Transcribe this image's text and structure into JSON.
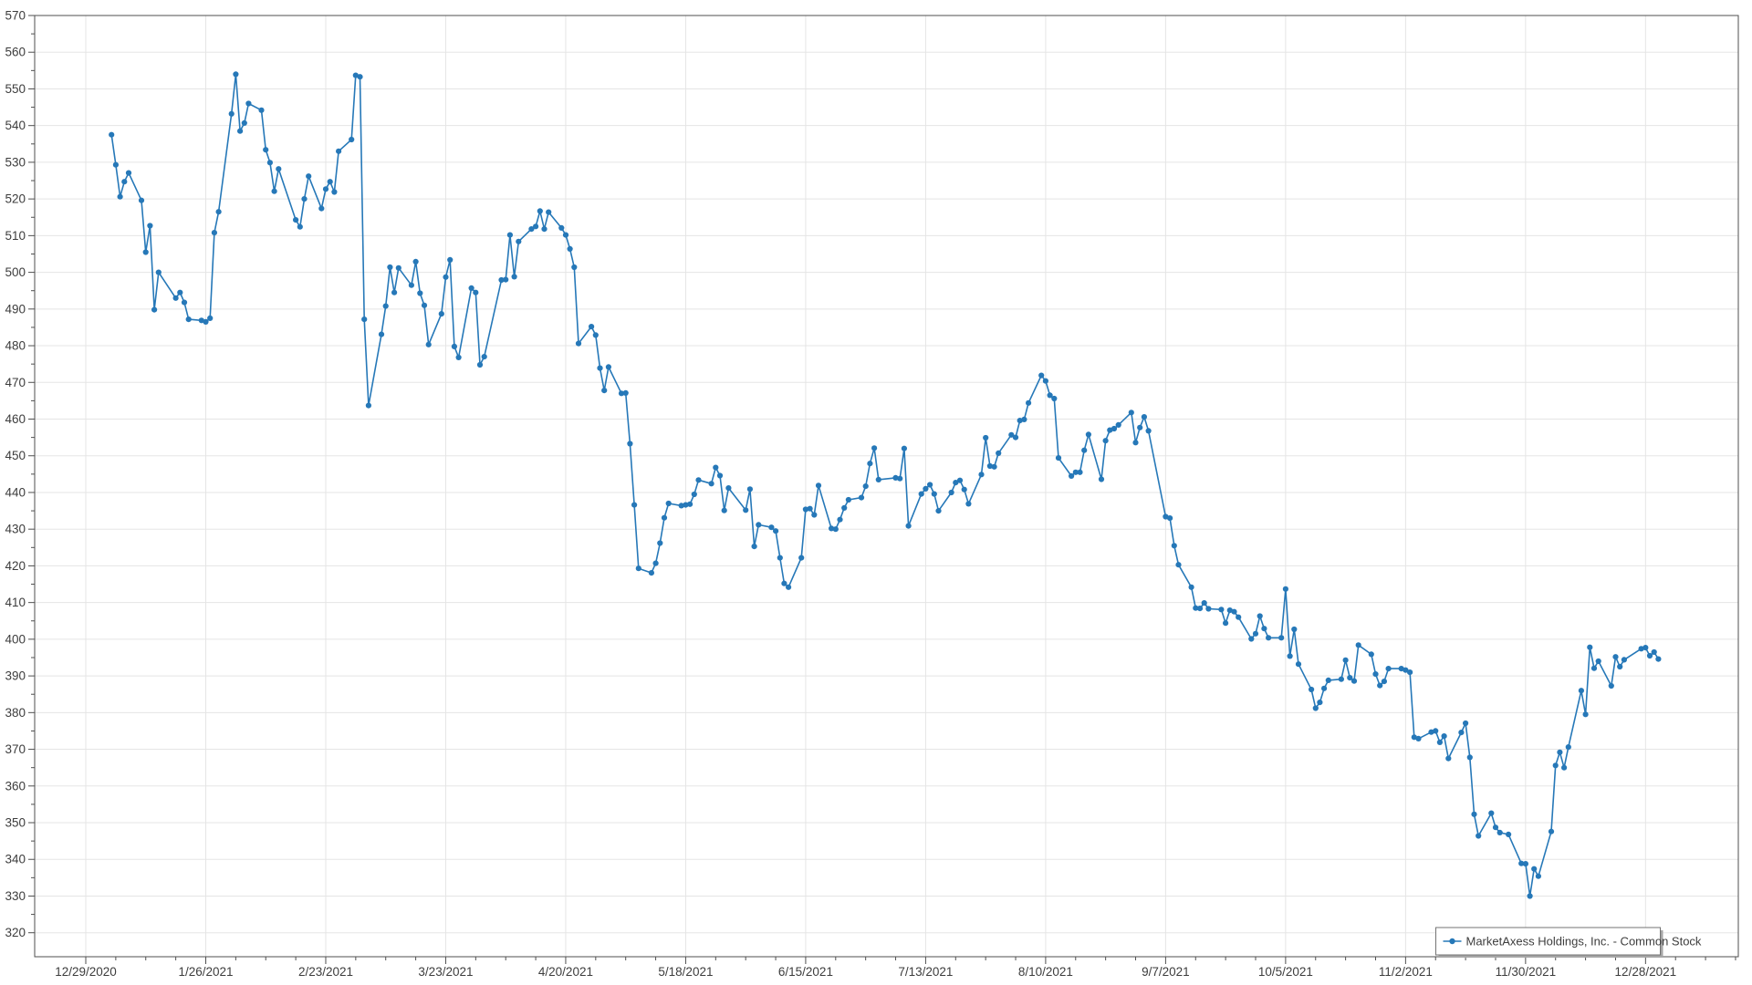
{
  "chart_data": {
    "type": "line",
    "title": "",
    "xlabel": "",
    "ylabel": "",
    "ylim": [
      320,
      570
    ],
    "y_tick_step": 10,
    "y_minor_tick_step": 5,
    "grid": true,
    "legend_position": "bottom-right",
    "colors": {
      "series": "#2678b8",
      "grid": "#e5e5e5",
      "axis": "#4f4f4f",
      "tick_label": "#3d3d3d",
      "legend_border": "#737373",
      "legend_shadow": "#a6a6a6",
      "background": "#ffffff"
    },
    "x_tick_labels": [
      "12/29/2020",
      "1/26/2021",
      "2/23/2021",
      "3/23/2021",
      "4/20/2021",
      "5/18/2021",
      "6/15/2021",
      "7/13/2021",
      "8/10/2021",
      "9/7/2021",
      "10/5/2021",
      "11/2/2021",
      "11/30/2021",
      "12/28/2021"
    ],
    "x_tick_epoch": "2020-12-29",
    "x_tick_interval_days": 28,
    "x_minor_tick_interval_days": 7,
    "series": [
      {
        "name": "MarketAxess Holdings, Inc. - Common Stock",
        "marker": "circle",
        "dates": [
          "2021-01-04",
          "2021-01-05",
          "2021-01-06",
          "2021-01-07",
          "2021-01-08",
          "2021-01-11",
          "2021-01-12",
          "2021-01-13",
          "2021-01-14",
          "2021-01-15",
          "2021-01-19",
          "2021-01-20",
          "2021-01-21",
          "2021-01-22",
          "2021-01-25",
          "2021-01-26",
          "2021-01-27",
          "2021-01-28",
          "2021-01-29",
          "2021-02-01",
          "2021-02-02",
          "2021-02-03",
          "2021-02-04",
          "2021-02-05",
          "2021-02-08",
          "2021-02-09",
          "2021-02-10",
          "2021-02-11",
          "2021-02-12",
          "2021-02-16",
          "2021-02-17",
          "2021-02-18",
          "2021-02-19",
          "2021-02-22",
          "2021-02-23",
          "2021-02-24",
          "2021-02-25",
          "2021-02-26",
          "2021-03-01",
          "2021-03-02",
          "2021-03-03",
          "2021-03-04",
          "2021-03-05",
          "2021-03-08",
          "2021-03-09",
          "2021-03-10",
          "2021-03-11",
          "2021-03-12",
          "2021-03-15",
          "2021-03-16",
          "2021-03-17",
          "2021-03-18",
          "2021-03-19",
          "2021-03-22",
          "2021-03-23",
          "2021-03-24",
          "2021-03-25",
          "2021-03-26",
          "2021-03-29",
          "2021-03-30",
          "2021-03-31",
          "2021-04-01",
          "2021-04-05",
          "2021-04-06",
          "2021-04-07",
          "2021-04-08",
          "2021-04-09",
          "2021-04-12",
          "2021-04-13",
          "2021-04-14",
          "2021-04-15",
          "2021-04-16",
          "2021-04-19",
          "2021-04-20",
          "2021-04-21",
          "2021-04-22",
          "2021-04-23",
          "2021-04-26",
          "2021-04-27",
          "2021-04-28",
          "2021-04-29",
          "2021-04-30",
          "2021-05-03",
          "2021-05-04",
          "2021-05-05",
          "2021-05-06",
          "2021-05-07",
          "2021-05-10",
          "2021-05-11",
          "2021-05-12",
          "2021-05-13",
          "2021-05-14",
          "2021-05-17",
          "2021-05-18",
          "2021-05-19",
          "2021-05-20",
          "2021-05-21",
          "2021-05-24",
          "2021-05-25",
          "2021-05-26",
          "2021-05-27",
          "2021-05-28",
          "2021-06-01",
          "2021-06-02",
          "2021-06-03",
          "2021-06-04",
          "2021-06-07",
          "2021-06-08",
          "2021-06-09",
          "2021-06-10",
          "2021-06-11",
          "2021-06-14",
          "2021-06-15",
          "2021-06-16",
          "2021-06-17",
          "2021-06-18",
          "2021-06-21",
          "2021-06-22",
          "2021-06-23",
          "2021-06-24",
          "2021-06-25",
          "2021-06-28",
          "2021-06-29",
          "2021-06-30",
          "2021-07-01",
          "2021-07-02",
          "2021-07-06",
          "2021-07-07",
          "2021-07-08",
          "2021-07-09",
          "2021-07-12",
          "2021-07-13",
          "2021-07-14",
          "2021-07-15",
          "2021-07-16",
          "2021-07-19",
          "2021-07-20",
          "2021-07-21",
          "2021-07-22",
          "2021-07-23",
          "2021-07-26",
          "2021-07-27",
          "2021-07-28",
          "2021-07-29",
          "2021-07-30",
          "2021-08-02",
          "2021-08-03",
          "2021-08-04",
          "2021-08-05",
          "2021-08-06",
          "2021-08-09",
          "2021-08-10",
          "2021-08-11",
          "2021-08-12",
          "2021-08-13",
          "2021-08-16",
          "2021-08-17",
          "2021-08-18",
          "2021-08-19",
          "2021-08-20",
          "2021-08-23",
          "2021-08-24",
          "2021-08-25",
          "2021-08-26",
          "2021-08-27",
          "2021-08-30",
          "2021-08-31",
          "2021-09-01",
          "2021-09-02",
          "2021-09-03",
          "2021-09-07",
          "2021-09-08",
          "2021-09-09",
          "2021-09-10",
          "2021-09-13",
          "2021-09-14",
          "2021-09-15",
          "2021-09-16",
          "2021-09-17",
          "2021-09-20",
          "2021-09-21",
          "2021-09-22",
          "2021-09-23",
          "2021-09-24",
          "2021-09-27",
          "2021-09-28",
          "2021-09-29",
          "2021-09-30",
          "2021-10-01",
          "2021-10-04",
          "2021-10-05",
          "2021-10-06",
          "2021-10-07",
          "2021-10-08",
          "2021-10-11",
          "2021-10-12",
          "2021-10-13",
          "2021-10-14",
          "2021-10-15",
          "2021-10-18",
          "2021-10-19",
          "2021-10-20",
          "2021-10-21",
          "2021-10-22",
          "2021-10-25",
          "2021-10-26",
          "2021-10-27",
          "2021-10-28",
          "2021-10-29",
          "2021-11-01",
          "2021-11-02",
          "2021-11-03",
          "2021-11-04",
          "2021-11-05",
          "2021-11-08",
          "2021-11-09",
          "2021-11-10",
          "2021-11-11",
          "2021-11-12",
          "2021-11-15",
          "2021-11-16",
          "2021-11-17",
          "2021-11-18",
          "2021-11-19",
          "2021-11-22",
          "2021-11-23",
          "2021-11-24",
          "2021-11-26",
          "2021-11-29",
          "2021-11-30",
          "2021-12-01",
          "2021-12-02",
          "2021-12-03",
          "2021-12-06",
          "2021-12-07",
          "2021-12-08",
          "2021-12-09",
          "2021-12-10",
          "2021-12-13",
          "2021-12-14",
          "2021-12-15",
          "2021-12-16",
          "2021-12-17",
          "2021-12-20",
          "2021-12-21",
          "2021-12-22",
          "2021-12-23",
          "2021-12-27",
          "2021-12-28",
          "2021-12-29",
          "2021-12-30",
          "2021-12-31"
        ],
        "values": [
          537.5,
          529.3,
          520.6,
          524.7,
          527.1,
          519.6,
          505.5,
          512.7,
          489.8,
          500.0,
          493.0,
          494.5,
          491.8,
          487.2,
          486.9,
          486.5,
          487.5,
          510.8,
          516.5,
          543.2,
          554.0,
          538.5,
          540.7,
          546.0,
          544.2,
          533.4,
          529.9,
          522.1,
          528.2,
          514.3,
          512.4,
          520.0,
          526.2,
          517.4,
          522.7,
          524.7,
          521.9,
          533.0,
          536.2,
          553.7,
          553.3,
          487.2,
          463.7,
          483.1,
          490.8,
          501.4,
          494.5,
          501.2,
          496.5,
          502.9,
          494.3,
          491.0,
          480.3,
          488.7,
          498.7,
          503.4,
          479.8,
          476.8,
          495.7,
          494.5,
          474.8,
          477.0,
          497.9,
          498.0,
          510.2,
          498.8,
          508.4,
          511.8,
          512.5,
          516.7,
          511.8,
          516.4,
          512.1,
          510.2,
          506.4,
          501.4,
          480.6,
          485.2,
          482.9,
          473.9,
          467.8,
          474.2,
          467.0,
          467.1,
          453.3,
          436.6,
          419.3,
          418.1,
          420.7,
          426.2,
          433.1,
          437.0,
          436.4,
          436.6,
          436.8,
          439.5,
          443.4,
          442.4,
          446.8,
          444.6,
          435.1,
          441.2,
          435.2,
          440.9,
          425.3,
          431.2,
          430.5,
          429.5,
          422.2,
          415.2,
          414.2,
          422.2,
          435.4,
          435.6,
          433.9,
          441.9,
          430.2,
          430.0,
          432.6,
          435.8,
          438.0,
          438.6,
          441.7,
          447.9,
          452.1,
          443.5,
          444.0,
          443.8,
          452.0,
          430.9,
          439.6,
          441.0,
          442.1,
          439.6,
          435.0,
          440.0,
          442.7,
          443.3,
          440.8,
          436.9,
          444.9,
          454.9,
          447.2,
          447.0,
          450.7,
          455.7,
          455.0,
          459.6,
          459.9,
          464.4,
          471.9,
          470.4,
          466.5,
          465.6,
          449.4,
          444.5,
          445.5,
          445.5,
          451.5,
          455.8,
          443.6,
          454.1,
          457.0,
          457.4,
          458.4,
          461.8,
          453.6,
          457.7,
          460.6,
          456.8,
          433.4,
          433.0,
          425.5,
          420.3,
          414.2,
          408.5,
          408.4,
          409.9,
          408.3,
          408.1,
          404.4,
          407.9,
          407.5,
          406.0,
          400.1,
          401.5,
          406.3,
          402.9,
          400.4,
          400.4,
          413.7,
          395.4,
          402.7,
          393.2,
          386.3,
          381.2,
          382.8,
          386.6,
          388.8,
          389.1,
          394.3,
          389.5,
          388.6,
          398.4,
          395.9,
          390.5,
          387.4,
          388.5,
          392.0,
          392.0,
          391.6,
          391.0,
          373.3,
          372.9,
          374.7,
          375.0,
          371.9,
          373.6,
          367.5,
          374.6,
          377.1,
          367.8,
          352.3,
          346.4,
          352.6,
          348.7,
          347.3,
          346.8,
          338.9,
          338.8,
          330.0,
          337.4,
          335.4,
          347.6,
          365.6,
          369.2,
          365.0,
          370.6,
          386.0,
          379.5,
          397.8,
          392.1,
          394.0,
          387.3,
          395.2,
          392.5,
          394.4,
          397.4,
          397.7,
          395.5,
          396.5,
          394.6
        ]
      }
    ]
  },
  "legend": {
    "label": "MarketAxess Holdings, Inc. - Common Stock"
  }
}
